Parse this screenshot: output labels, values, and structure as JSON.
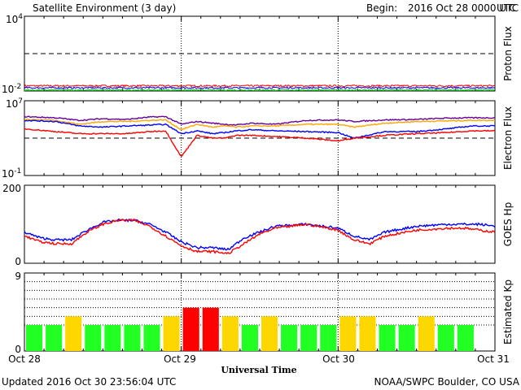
{
  "header": {
    "title": "Satellite Environment (3 day)",
    "begin_label": "Begin:",
    "begin_value": "2016 Oct 28 0000 UTC"
  },
  "footer": {
    "updated": "Updated 2016 Oct 30 23:56:04 UTC",
    "credit": "NOAA/SWPC Boulder, CO USA"
  },
  "colors": {
    "red": "#ff0000",
    "blue": "#0000ff",
    "green": "#00dd00",
    "orange": "#ffa500",
    "purple": "#660099",
    "kp_green": "#22ff22",
    "kp_yellow": "#ffd700",
    "kp_red": "#ff0000"
  },
  "chart_data": [
    {
      "id": "proton",
      "type": "line",
      "ylabel": "Proton Flux",
      "scale": "log",
      "ylim": [
        0.01,
        10000
      ],
      "yticks": [
        {
          "v": 10000,
          "base": "10",
          "exp": "4"
        },
        {
          "v": 0.01,
          "base": "10",
          "exp": "-2"
        }
      ],
      "threshold": 10,
      "series": [
        {
          "color": "red",
          "mean": 0.026,
          "spread": 0.14
        },
        {
          "color": "blue",
          "mean": 0.018,
          "spread": 0.12
        },
        {
          "color": "green",
          "mean": 0.012,
          "spread": 0.1
        }
      ]
    },
    {
      "id": "electron",
      "type": "line",
      "ylabel": "Electron Flux",
      "scale": "log",
      "ylim": [
        0.1,
        10000000
      ],
      "yticks": [
        {
          "v": 10000000,
          "base": "10",
          "exp": "7"
        },
        {
          "v": 0.1,
          "base": "10",
          "exp": "-1"
        }
      ],
      "threshold": 1000,
      "x": [
        0,
        0.2,
        0.35,
        0.5,
        0.65,
        0.8,
        0.9,
        1.0,
        1.1,
        1.2,
        1.28,
        1.35,
        1.45,
        1.6,
        1.8,
        2.0,
        2.1,
        2.3,
        2.5,
        2.7,
        2.85,
        3.0
      ],
      "series": [
        {
          "color": "purple",
          "y": [
            200000,
            150000,
            80000,
            120000,
            100000,
            180000,
            200000,
            30000,
            60000,
            40000,
            30000,
            25000,
            40000,
            30000,
            80000,
            90000,
            60000,
            90000,
            100000,
            140000,
            150000,
            150000
          ]
        },
        {
          "color": "orange",
          "y": [
            100000,
            80000,
            30000,
            60000,
            60000,
            80000,
            90000,
            8000,
            30000,
            15000,
            20000,
            15000,
            20000,
            20000,
            30000,
            30000,
            15000,
            40000,
            60000,
            70000,
            80000,
            80000
          ]
        },
        {
          "color": "blue",
          "y": [
            80000,
            60000,
            20000,
            15000,
            20000,
            25000,
            30000,
            3000,
            6000,
            3000,
            4000,
            6000,
            8000,
            6000,
            5000,
            4000,
            1000,
            5000,
            5000,
            10000,
            20000,
            20000
          ]
        },
        {
          "color": "red",
          "y": [
            10000,
            5000,
            3000,
            3000,
            3000,
            5000,
            6000,
            10,
            2000,
            1000,
            1000,
            2000,
            2000,
            1500,
            1000,
            500,
            1000,
            2000,
            3000,
            4000,
            6000,
            6000
          ]
        }
      ]
    },
    {
      "id": "hp",
      "type": "line",
      "ylabel": "GOES Hp",
      "scale": "linear",
      "ylim": [
        0,
        200
      ],
      "yticks": [
        {
          "v": 200,
          "label": "200"
        },
        {
          "v": 0,
          "label": "0"
        }
      ],
      "x": [
        0,
        0.1,
        0.2,
        0.3,
        0.4,
        0.5,
        0.6,
        0.7,
        0.8,
        0.9,
        1.0,
        1.1,
        1.15,
        1.2,
        1.3,
        1.4,
        1.5,
        1.6,
        1.8,
        2.0,
        2.1,
        2.2,
        2.3,
        2.5,
        2.7,
        2.8,
        2.9,
        3.0
      ],
      "series": [
        {
          "color": "blue",
          "y": [
            80,
            65,
            60,
            60,
            85,
            105,
            110,
            110,
            100,
            80,
            55,
            40,
            40,
            40,
            35,
            65,
            80,
            95,
            100,
            90,
            70,
            60,
            80,
            95,
            100,
            100,
            100,
            95
          ]
        },
        {
          "color": "red",
          "y": [
            70,
            55,
            50,
            50,
            80,
            100,
            110,
            110,
            95,
            70,
            45,
            30,
            30,
            30,
            25,
            50,
            75,
            90,
            100,
            85,
            60,
            50,
            70,
            85,
            90,
            90,
            85,
            80
          ]
        }
      ]
    },
    {
      "id": "kp",
      "type": "bar",
      "ylabel": "Estimated Kp",
      "scale": "linear",
      "ylim": [
        0,
        9
      ],
      "yticks": [
        {
          "v": 9,
          "label": "9"
        },
        {
          "v": 0,
          "label": "0"
        }
      ],
      "values": [
        3,
        3,
        4,
        3,
        3,
        3,
        3,
        4,
        5,
        5,
        4,
        3,
        4,
        3,
        3,
        3,
        4,
        4,
        3,
        3,
        4,
        3,
        3
      ]
    }
  ],
  "x_axis": {
    "labels": [
      "Oct 28",
      "Oct 29",
      "Oct 30",
      "Oct 31"
    ],
    "xlabel": "Universal Time",
    "right_tick": "UTC"
  }
}
